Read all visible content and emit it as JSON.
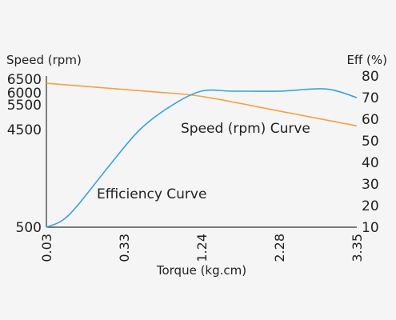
{
  "chart_data": {
    "type": "line",
    "xlabel": "Torque (kg.cm)",
    "x_ticks": [
      "0.03",
      "0.33",
      "1.24",
      "2.28",
      "3.35"
    ],
    "y_left": {
      "label": "Speed (rpm)",
      "ticks": [
        "500",
        "4500",
        "5500",
        "6000",
        "6500"
      ]
    },
    "y_right": {
      "label": "Eff (%)",
      "ticks": [
        "10",
        "20",
        "30",
        "40",
        "50",
        "60",
        "70",
        "80"
      ],
      "ylim": [
        10,
        80
      ]
    },
    "series": [
      {
        "name": "Speed (rpm) Curve",
        "axis": "left",
        "color": "#f5a046",
        "points": [
          [
            0.0,
            6350
          ],
          [
            0.33,
            6050
          ],
          [
            0.5,
            5850
          ],
          [
            0.75,
            5250
          ],
          [
            1.0,
            4650
          ]
        ]
      },
      {
        "name": "Efficiency Curve",
        "axis": "right",
        "color": "#3aa3de",
        "points": [
          [
            0.0,
            10
          ],
          [
            0.05,
            13
          ],
          [
            0.1,
            20
          ],
          [
            0.2,
            38
          ],
          [
            0.3,
            55
          ],
          [
            0.4,
            66
          ],
          [
            0.5,
            73
          ],
          [
            0.6,
            73
          ],
          [
            0.75,
            73
          ],
          [
            0.9,
            74
          ],
          [
            1.0,
            70
          ]
        ]
      }
    ],
    "grid": false,
    "legend": "none"
  }
}
